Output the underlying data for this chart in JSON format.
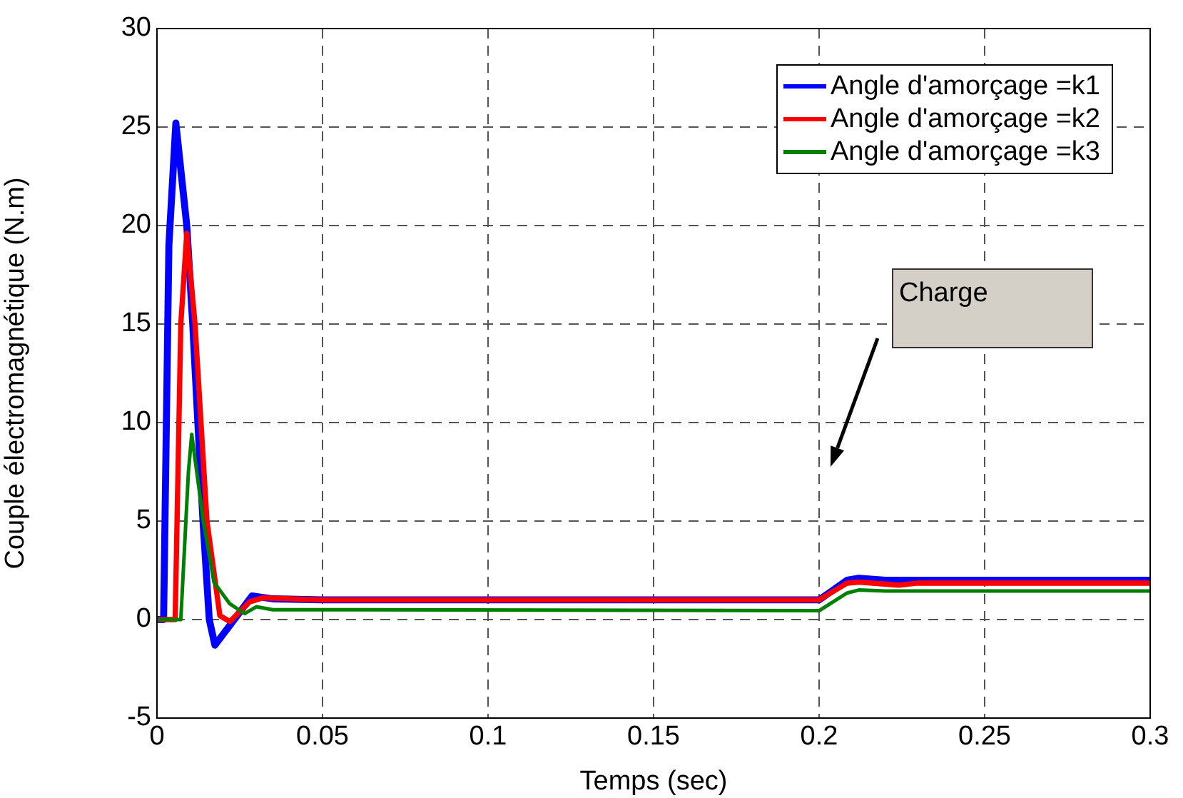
{
  "chart_data": {
    "type": "line",
    "xlabel": "Temps (sec)",
    "ylabel": "Couple électromagnétique (N.m)",
    "xlim": [
      0,
      0.3
    ],
    "xticks": [
      0,
      0.05,
      0.1,
      0.15,
      0.2,
      0.25,
      0.3
    ],
    "ylim": [
      -5,
      30
    ],
    "yticks": [
      -5,
      0,
      5,
      10,
      15,
      20,
      25,
      30
    ],
    "grid": true,
    "legend": "top right",
    "line_style": "solid",
    "marker": "none",
    "annotations": [
      "Charge"
    ],
    "series": [
      {
        "name": "Angle d'amorçage =k1",
        "color": "#0000ff",
        "x": [
          0,
          0.002,
          0.0036,
          0.0057,
          0.009,
          0.0108,
          0.0139,
          0.0158,
          0.0175,
          0.022,
          0.0287,
          0.035,
          0.05,
          0.2,
          0.2085,
          0.212,
          0.22,
          0.3
        ],
        "values": [
          0,
          0,
          19,
          25.2,
          20,
          15,
          5,
          0,
          -1.3,
          -0.3,
          1.2,
          1.05,
          1,
          1,
          2,
          2.1,
          2,
          2
        ]
      },
      {
        "name": "Angle d'amorçage =k2",
        "color": "#ff0000",
        "x": [
          0,
          0.0055,
          0.0072,
          0.009,
          0.0115,
          0.0151,
          0.019,
          0.022,
          0.028,
          0.032,
          0.05,
          0.2,
          0.2085,
          0.212,
          0.224,
          0.23,
          0.3
        ],
        "values": [
          0,
          0,
          15,
          19.6,
          15,
          5,
          0.2,
          -0.1,
          0.9,
          1.1,
          1,
          1,
          1.85,
          1.9,
          1.75,
          1.85,
          1.85
        ]
      },
      {
        "name": "Angle d'amorçage =k3",
        "color": "#008000",
        "x": [
          0,
          0.0072,
          0.0095,
          0.0105,
          0.014,
          0.0172,
          0.022,
          0.0265,
          0.03,
          0.035,
          0.05,
          0.2,
          0.2085,
          0.212,
          0.22,
          0.3
        ],
        "values": [
          0,
          0,
          7.5,
          9.4,
          5,
          1.9,
          0.8,
          0.3,
          0.65,
          0.5,
          0.5,
          0.45,
          1.35,
          1.5,
          1.45,
          1.45
        ]
      }
    ]
  }
}
